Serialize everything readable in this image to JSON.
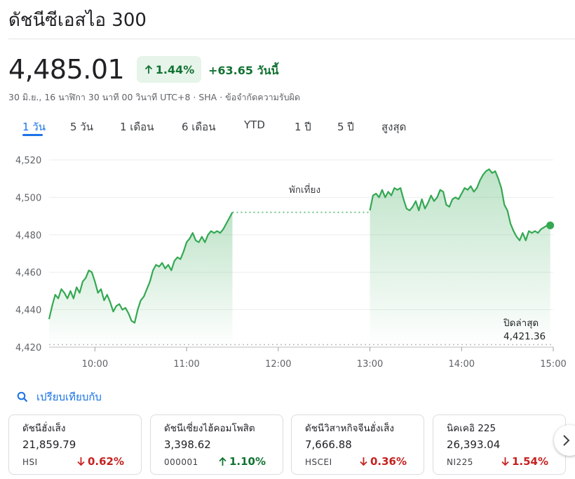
{
  "header": {
    "title": "ดัชนีซีเอสไอ 300"
  },
  "quote": {
    "price": "4,485.01",
    "percent_change": "1.44%",
    "change": "+63.65",
    "change_period": "วันนี้",
    "meta": "30 มิ.ย., 16 นาฬิกา 30 นาที 00 วินาที UTC+8 · SHA · ข้อจำกัดความรับผิด",
    "trend_color": "#137333"
  },
  "tabs": [
    {
      "label": "1 วัน",
      "active": true
    },
    {
      "label": "5 วัน"
    },
    {
      "label": "1 เดือน"
    },
    {
      "label": "6 เดือน"
    },
    {
      "label": "YTD"
    },
    {
      "label": "1 ปี"
    },
    {
      "label": "5 ปี"
    },
    {
      "label": "สูงสุด"
    }
  ],
  "chart_data": {
    "type": "line",
    "line_color": "#34a853",
    "ylim": [
      4420,
      4520
    ],
    "yticks": [
      "4,520",
      "4,500",
      "4,480",
      "4,460",
      "4,440",
      "4,420"
    ],
    "ytick_values": [
      4520,
      4500,
      4480,
      4460,
      4440,
      4420
    ],
    "xticks": [
      "10:00",
      "11:00",
      "12:00",
      "13:00",
      "14:00",
      "15:00"
    ],
    "xtick_minutes": [
      0,
      60,
      120,
      180,
      240,
      300
    ],
    "xlim_minutes": [
      -30,
      300
    ],
    "x_origin_time": "10:00",
    "lunch_break_label": "พักเที่ยง",
    "lunch_break_minutes": [
      90,
      180
    ],
    "previous_close_label": "ปิดล่าสุด",
    "previous_close": 4421.36,
    "previous_close_text": "4,421.36",
    "morning_session": [
      [
        -30,
        4435
      ],
      [
        -28,
        4442
      ],
      [
        -26,
        4448
      ],
      [
        -24,
        4446
      ],
      [
        -22,
        4451
      ],
      [
        -20,
        4449
      ],
      [
        -18,
        4446
      ],
      [
        -16,
        4450
      ],
      [
        -14,
        4446
      ],
      [
        -12,
        4452
      ],
      [
        -10,
        4449
      ],
      [
        -8,
        4455
      ],
      [
        -6,
        4457
      ],
      [
        -4,
        4461
      ],
      [
        -2,
        4460
      ],
      [
        0,
        4455
      ],
      [
        2,
        4449
      ],
      [
        4,
        4451
      ],
      [
        6,
        4445
      ],
      [
        8,
        4448
      ],
      [
        10,
        4444
      ],
      [
        12,
        4439
      ],
      [
        14,
        4442
      ],
      [
        16,
        4443
      ],
      [
        18,
        4440
      ],
      [
        20,
        4441
      ],
      [
        22,
        4438
      ],
      [
        24,
        4434
      ],
      [
        26,
        4433
      ],
      [
        28,
        4440
      ],
      [
        30,
        4445
      ],
      [
        32,
        4447
      ],
      [
        34,
        4451
      ],
      [
        36,
        4455
      ],
      [
        38,
        4461
      ],
      [
        40,
        4464
      ],
      [
        42,
        4463
      ],
      [
        44,
        4465
      ],
      [
        46,
        4462
      ],
      [
        48,
        4464
      ],
      [
        50,
        4461
      ],
      [
        52,
        4466
      ],
      [
        54,
        4468
      ],
      [
        56,
        4467
      ],
      [
        58,
        4471
      ],
      [
        60,
        4476
      ],
      [
        62,
        4478
      ],
      [
        64,
        4481
      ],
      [
        66,
        4477
      ],
      [
        68,
        4476
      ],
      [
        70,
        4479
      ],
      [
        72,
        4476
      ],
      [
        74,
        4480
      ],
      [
        76,
        4482
      ],
      [
        78,
        4481
      ],
      [
        80,
        4482
      ],
      [
        82,
        4481
      ],
      [
        84,
        4483
      ],
      [
        86,
        4486
      ],
      [
        88,
        4489
      ],
      [
        90,
        4492
      ]
    ],
    "afternoon_session": [
      [
        180,
        4493
      ],
      [
        182,
        4501
      ],
      [
        184,
        4502
      ],
      [
        186,
        4500
      ],
      [
        188,
        4504
      ],
      [
        190,
        4500
      ],
      [
        192,
        4503
      ],
      [
        194,
        4501
      ],
      [
        196,
        4505
      ],
      [
        198,
        4504
      ],
      [
        200,
        4505
      ],
      [
        202,
        4499
      ],
      [
        204,
        4494
      ],
      [
        206,
        4493
      ],
      [
        208,
        4495
      ],
      [
        210,
        4498
      ],
      [
        212,
        4493
      ],
      [
        214,
        4499
      ],
      [
        216,
        4494
      ],
      [
        218,
        4497
      ],
      [
        220,
        4501
      ],
      [
        222,
        4498
      ],
      [
        224,
        4500
      ],
      [
        226,
        4504
      ],
      [
        228,
        4503
      ],
      [
        230,
        4496
      ],
      [
        232,
        4495
      ],
      [
        234,
        4499
      ],
      [
        236,
        4500
      ],
      [
        238,
        4499
      ],
      [
        240,
        4502
      ],
      [
        242,
        4505
      ],
      [
        244,
        4504
      ],
      [
        246,
        4506
      ],
      [
        248,
        4503
      ],
      [
        250,
        4505
      ],
      [
        252,
        4509
      ],
      [
        254,
        4512
      ],
      [
        256,
        4514
      ],
      [
        258,
        4515
      ],
      [
        260,
        4513
      ],
      [
        262,
        4514
      ],
      [
        264,
        4510
      ],
      [
        266,
        4505
      ],
      [
        268,
        4496
      ],
      [
        270,
        4493
      ],
      [
        272,
        4486
      ],
      [
        274,
        4482
      ],
      [
        276,
        4479
      ],
      [
        278,
        4477
      ],
      [
        280,
        4481
      ],
      [
        282,
        4477
      ],
      [
        284,
        4482
      ],
      [
        286,
        4481
      ],
      [
        288,
        4482
      ],
      [
        290,
        4481
      ],
      [
        292,
        4483
      ],
      [
        294,
        4484
      ],
      [
        296,
        4485
      ],
      [
        298,
        4485.01
      ]
    ]
  },
  "compare": {
    "label": "เปรียบเทียบกับ"
  },
  "cards": [
    {
      "name": "ดัชนีฮั่งเส็ง",
      "price": "21,859.79",
      "ticker": "HSI",
      "change": "0.62%",
      "direction": "down"
    },
    {
      "name": "ดัชนีเซี่ยงไฮ้คอมโพสิต",
      "price": "3,398.62",
      "ticker": "000001",
      "change": "1.10%",
      "direction": "up"
    },
    {
      "name": "ดัชนีวิสาหกิจจีนฮั่งเส็ง",
      "price": "7,666.88",
      "ticker": "HSCEI",
      "change": "0.36%",
      "direction": "down"
    },
    {
      "name": "นิคเคอิ 225",
      "price": "26,393.04",
      "ticker": "NI225",
      "change": "1.54%",
      "direction": "down"
    }
  ]
}
